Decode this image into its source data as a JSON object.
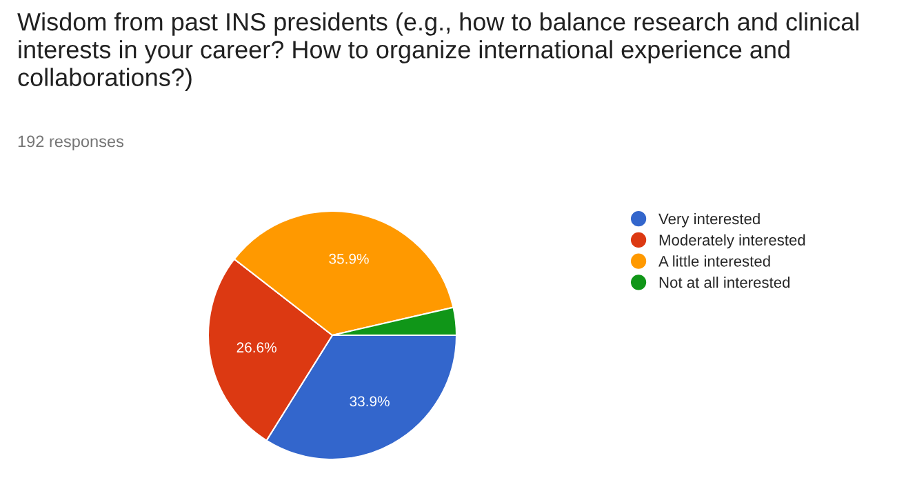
{
  "chart_data": {
    "type": "pie",
    "title": "Wisdom from past INS presidents (e.g., how to balance research and clinical interests in your career? How to organize international experience and collaborations?)",
    "subtitle": "192 responses",
    "categories": [
      "Very interested",
      "Moderately interested",
      "A little interested",
      "Not at all interested"
    ],
    "values": [
      33.9,
      26.6,
      35.9,
      3.6
    ],
    "colors": [
      "#3366cc",
      "#dc3912",
      "#ff9900",
      "#109618"
    ],
    "value_labels": [
      "33.9%",
      "26.6%",
      "35.9%",
      null
    ],
    "legend": "right"
  }
}
